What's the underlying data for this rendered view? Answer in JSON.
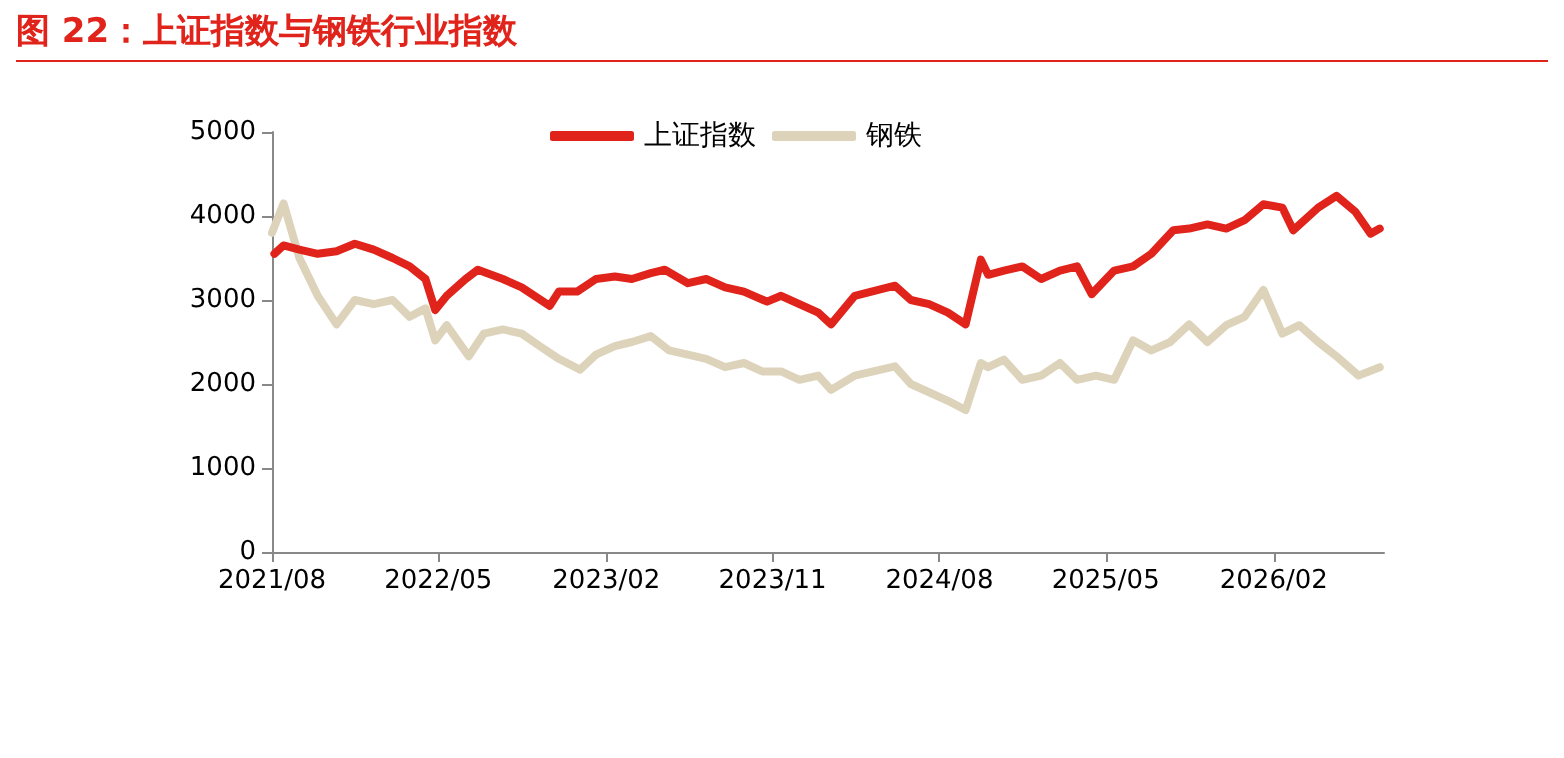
{
  "chart_data": {
    "type": "line",
    "title": "图 22：上证指数与钢铁行业指数",
    "legend": "top",
    "grid": false,
    "marker": "none",
    "line_style": "solid",
    "ylim": [
      0,
      5000
    ],
    "yticks": [
      0,
      1000,
      2000,
      3000,
      4000,
      5000
    ],
    "xlim": [
      "2021-08-01",
      "2026-08-01"
    ],
    "xticks": [
      {
        "value": "2021-08-01",
        "label": "2021/08"
      },
      {
        "value": "2022-05-01",
        "label": "2022/05"
      },
      {
        "value": "2023-02-01",
        "label": "2023/02"
      },
      {
        "value": "2023-11-01",
        "label": "2023/11"
      },
      {
        "value": "2024-08-01",
        "label": "2024/08"
      },
      {
        "value": "2025-05-01",
        "label": "2025/05"
      },
      {
        "value": "2026-02-01",
        "label": "2026/02"
      }
    ],
    "series": [
      {
        "name": "上证指数",
        "color": "#e0241b",
        "x": [
          "2021-08-05",
          "2021-08-20",
          "2021-09-15",
          "2021-10-15",
          "2021-11-15",
          "2021-12-15",
          "2022-01-15",
          "2022-02-15",
          "2022-03-15",
          "2022-04-10",
          "2022-04-26",
          "2022-05-15",
          "2022-06-15",
          "2022-07-05",
          "2022-08-15",
          "2022-09-15",
          "2022-10-31",
          "2022-11-15",
          "2022-12-15",
          "2023-01-15",
          "2023-02-15",
          "2023-03-15",
          "2023-04-15",
          "2023-05-08",
          "2023-06-15",
          "2023-07-15",
          "2023-08-15",
          "2023-09-15",
          "2023-10-23",
          "2023-11-15",
          "2023-12-15",
          "2024-01-15",
          "2024-02-05",
          "2024-03-15",
          "2024-05-20",
          "2024-06-15",
          "2024-07-15",
          "2024-08-15",
          "2024-09-13",
          "2024-10-08",
          "2024-10-20",
          "2024-11-15",
          "2024-12-15",
          "2025-01-15",
          "2025-02-15",
          "2025-03-15",
          "2025-04-08",
          "2025-05-15",
          "2025-06-15",
          "2025-07-15",
          "2025-08-20",
          "2025-09-15",
          "2025-10-15",
          "2025-11-15",
          "2025-12-15",
          "2026-01-15",
          "2026-02-15",
          "2026-03-05",
          "2026-04-15",
          "2026-05-15",
          "2026-06-15",
          "2026-07-10",
          "2026-07-25"
        ],
        "values": [
          3550,
          3650,
          3600,
          3550,
          3580,
          3670,
          3600,
          3500,
          3400,
          3250,
          2880,
          3050,
          3250,
          3360,
          3250,
          3150,
          2930,
          3100,
          3100,
          3250,
          3280,
          3250,
          3320,
          3360,
          3200,
          3250,
          3150,
          3100,
          2980,
          3050,
          2950,
          2850,
          2710,
          3050,
          3170,
          3000,
          2950,
          2850,
          2710,
          3480,
          3300,
          3350,
          3400,
          3250,
          3350,
          3400,
          3070,
          3350,
          3400,
          3550,
          3830,
          3850,
          3900,
          3850,
          3950,
          4140,
          4100,
          3830,
          4100,
          4240,
          4050,
          3790,
          3850
        ]
      },
      {
        "name": "钢铁",
        "color": "#ddd3ba",
        "x": [
          "2021-08-01",
          "2021-08-20",
          "2021-09-15",
          "2021-10-15",
          "2021-11-15",
          "2021-12-15",
          "2022-01-15",
          "2022-02-15",
          "2022-03-15",
          "2022-04-10",
          "2022-04-26",
          "2022-05-15",
          "2022-06-20",
          "2022-07-15",
          "2022-08-15",
          "2022-09-15",
          "2022-10-15",
          "2022-11-15",
          "2022-12-20",
          "2023-01-15",
          "2023-02-15",
          "2023-03-15",
          "2023-04-15",
          "2023-05-15",
          "2023-06-15",
          "2023-07-15",
          "2023-08-15",
          "2023-09-15",
          "2023-10-15",
          "2023-11-15",
          "2023-12-15",
          "2024-01-15",
          "2024-02-05",
          "2024-03-15",
          "2024-05-20",
          "2024-06-15",
          "2024-08-15",
          "2024-09-13",
          "2024-10-08",
          "2024-10-20",
          "2024-11-15",
          "2024-12-15",
          "2025-01-15",
          "2025-02-15",
          "2025-03-15",
          "2025-04-15",
          "2025-05-15",
          "2025-06-15",
          "2025-07-15",
          "2025-08-15",
          "2025-09-15",
          "2025-10-15",
          "2025-11-15",
          "2025-12-15",
          "2026-01-15",
          "2026-02-15",
          "2026-03-15",
          "2026-04-15",
          "2026-05-15",
          "2026-06-20",
          "2026-07-25"
        ],
        "values": [
          3800,
          4150,
          3500,
          3050,
          2710,
          3000,
          2950,
          3000,
          2800,
          2900,
          2520,
          2700,
          2330,
          2600,
          2650,
          2600,
          2450,
          2300,
          2170,
          2350,
          2450,
          2500,
          2570,
          2400,
          2350,
          2300,
          2200,
          2250,
          2150,
          2150,
          2050,
          2100,
          1930,
          2100,
          2210,
          2000,
          1800,
          1690,
          2250,
          2200,
          2290,
          2050,
          2100,
          2250,
          2050,
          2100,
          2050,
          2520,
          2400,
          2500,
          2710,
          2500,
          2700,
          2800,
          3120,
          2600,
          2700,
          2500,
          2330,
          2100,
          2200
        ]
      }
    ]
  }
}
